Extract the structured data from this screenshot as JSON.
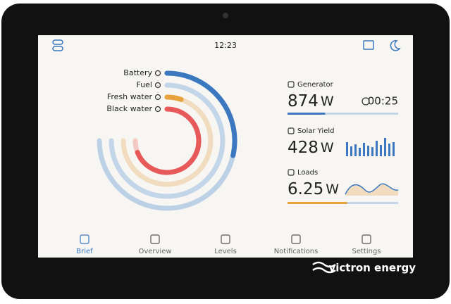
{
  "status_bar": {
    "time": "12:23"
  },
  "tanks": [
    {
      "label": "Battery",
      "level": 38,
      "color": "#3b78c0",
      "track": "#bcd0e6"
    },
    {
      "label": "Fuel",
      "level": 0,
      "color": "#3b78c0",
      "track": "#c3d5e9"
    },
    {
      "label": "Fresh water",
      "level": 7,
      "color": "#e8a23c",
      "track": "#f1dcc0"
    },
    {
      "label": "Black water",
      "level": 92,
      "color": "#e85a5a",
      "track": "#f3c9c6"
    }
  ],
  "widgets": [
    {
      "title": "Generator",
      "value": "874",
      "unit": "W",
      "timer": "00:25",
      "level": 34,
      "color": "#3b78c0"
    },
    {
      "title": "Solar Yield",
      "value": "428",
      "unit": "W"
    },
    {
      "title": "Loads",
      "value": "6.25",
      "unit": "W",
      "level": 54,
      "color": "#e8a23c"
    }
  ],
  "nav": [
    "Brief",
    "Overview",
    "Levels",
    "Notifications",
    "Settings"
  ],
  "brand": "victron energy"
}
